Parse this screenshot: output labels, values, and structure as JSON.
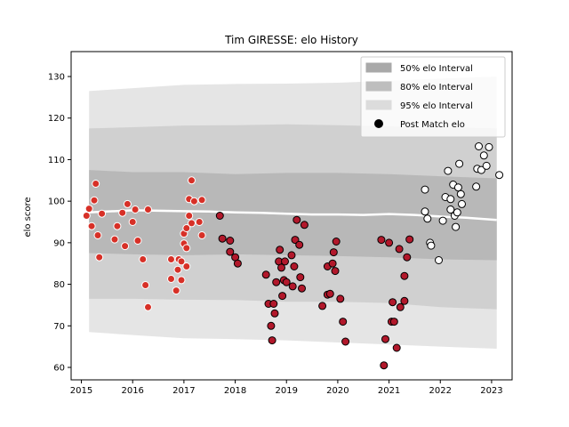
{
  "chart_data": {
    "type": "scatter",
    "title": "Tim GIRESSE: elo History",
    "xlabel": "",
    "ylabel": "elo score",
    "xlim": [
      2014.8,
      2023.4
    ],
    "ylim": [
      57,
      136
    ],
    "x_ticks": [
      2015,
      2016,
      2017,
      2018,
      2019,
      2020,
      2021,
      2022,
      2023
    ],
    "x_tick_labels": [
      "2015",
      "2016",
      "2017",
      "2018",
      "2019",
      "2020",
      "2021",
      "2022",
      "2023"
    ],
    "y_ticks": [
      60,
      70,
      80,
      90,
      100,
      110,
      120,
      130
    ],
    "y_tick_labels": [
      "60",
      "70",
      "80",
      "90",
      "100",
      "110",
      "120",
      "130"
    ],
    "grid": false,
    "legend": {
      "placement": "top-right",
      "entries": [
        {
          "label": "50% elo Interval",
          "color": "#a9a9a9"
        },
        {
          "label": "80% elo Interval",
          "color": "#bebebe"
        },
        {
          "label": "95% elo Interval",
          "color": "#dcdcdc"
        },
        {
          "label": "Post Match elo",
          "color": "#000000"
        }
      ]
    },
    "bands": [
      {
        "name": "95% elo Interval",
        "color": "#e0e0e0",
        "x": [
          2015.15,
          2016.0,
          2017.0,
          2018.0,
          2019.0,
          2020.0,
          2021.0,
          2022.0,
          2023.1
        ],
        "upper": [
          126.5,
          127.2,
          128.0,
          128.2,
          128.3,
          128.5,
          129.0,
          129.5,
          130.0
        ],
        "lower": [
          68.5,
          67.8,
          67.0,
          66.8,
          66.5,
          66.0,
          65.5,
          65.0,
          64.5
        ]
      },
      {
        "name": "80% elo Interval",
        "color": "#cccccc",
        "x": [
          2015.15,
          2016.0,
          2017.0,
          2018.0,
          2019.0,
          2020.0,
          2021.0,
          2022.0,
          2023.1
        ],
        "upper": [
          117.5,
          117.8,
          118.2,
          118.3,
          118.5,
          118.3,
          118.0,
          117.8,
          117.5
        ],
        "lower": [
          76.5,
          76.5,
          76.3,
          76.2,
          75.8,
          75.8,
          75.5,
          74.5,
          74.0
        ]
      },
      {
        "name": "50% elo Interval",
        "color": "#b4b4b4",
        "x": [
          2015.15,
          2016.0,
          2017.0,
          2018.0,
          2019.0,
          2020.0,
          2021.0,
          2022.0,
          2023.1
        ],
        "upper": [
          107.5,
          107.0,
          107.0,
          106.5,
          106.8,
          106.8,
          106.5,
          106.0,
          105.5
        ],
        "lower": [
          87.5,
          87.2,
          87.0,
          87.2,
          87.0,
          86.8,
          86.5,
          86.0,
          85.8
        ]
      }
    ],
    "mean_line": {
      "color": "#ffffff",
      "x": [
        2015.15,
        2015.5,
        2016.0,
        2016.5,
        2017.0,
        2017.5,
        2018.0,
        2018.5,
        2019.0,
        2019.5,
        2020.0,
        2020.5,
        2021.0,
        2021.5,
        2022.0,
        2022.5,
        2023.1
      ],
      "y": [
        97.3,
        97.5,
        97.8,
        97.7,
        97.6,
        97.5,
        97.3,
        97.2,
        97.0,
        96.8,
        96.8,
        96.7,
        96.9,
        96.7,
        96.3,
        96.0,
        95.5
      ]
    },
    "series": [
      {
        "name": "Post Match elo",
        "era": "early",
        "color": "#d73027",
        "edge": "#ffffff",
        "points": [
          [
            2015.1,
            96.5
          ],
          [
            2015.15,
            98.2
          ],
          [
            2015.2,
            94.0
          ],
          [
            2015.25,
            100.2
          ],
          [
            2015.28,
            104.2
          ],
          [
            2015.32,
            91.8
          ],
          [
            2015.35,
            86.5
          ],
          [
            2015.4,
            97.0
          ],
          [
            2015.65,
            90.8
          ],
          [
            2015.7,
            94.0
          ],
          [
            2015.8,
            97.2
          ],
          [
            2015.85,
            89.2
          ],
          [
            2015.9,
            99.3
          ],
          [
            2016.0,
            95.0
          ],
          [
            2016.05,
            98.0
          ],
          [
            2016.1,
            90.5
          ],
          [
            2016.2,
            86.0
          ],
          [
            2016.25,
            79.8
          ],
          [
            2016.3,
            98.0
          ],
          [
            2016.3,
            74.5
          ],
          [
            2016.75,
            86.0
          ],
          [
            2016.75,
            81.3
          ],
          [
            2016.85,
            78.5
          ],
          [
            2016.88,
            83.5
          ],
          [
            2016.9,
            86.0
          ],
          [
            2016.95,
            81.0
          ],
          [
            2016.95,
            85.5
          ],
          [
            2017.0,
            92.2
          ],
          [
            2017.0,
            89.8
          ],
          [
            2017.05,
            88.7
          ],
          [
            2017.05,
            84.3
          ],
          [
            2017.05,
            93.5
          ],
          [
            2017.1,
            96.5
          ],
          [
            2017.1,
            100.5
          ],
          [
            2017.15,
            105.0
          ],
          [
            2017.15,
            94.7
          ],
          [
            2017.2,
            100.0
          ],
          [
            2017.3,
            95.0
          ],
          [
            2017.35,
            100.3
          ],
          [
            2017.35,
            91.8
          ]
        ]
      },
      {
        "name": "Post Match elo",
        "era": "middle",
        "color": "#b2182b",
        "edge": "#000000",
        "points": [
          [
            2017.7,
            96.5
          ],
          [
            2017.75,
            91.0
          ],
          [
            2017.9,
            90.5
          ],
          [
            2017.9,
            87.8
          ],
          [
            2018.0,
            86.5
          ],
          [
            2018.05,
            85.0
          ],
          [
            2018.6,
            82.3
          ],
          [
            2018.65,
            75.3
          ],
          [
            2018.7,
            70.0
          ],
          [
            2018.72,
            66.5
          ],
          [
            2018.75,
            75.3
          ],
          [
            2018.77,
            73.0
          ],
          [
            2018.8,
            80.5
          ],
          [
            2018.85,
            85.5
          ],
          [
            2018.87,
            88.3
          ],
          [
            2018.9,
            84.0
          ],
          [
            2018.92,
            77.2
          ],
          [
            2018.95,
            81.0
          ],
          [
            2018.97,
            85.5
          ],
          [
            2019.0,
            80.5
          ],
          [
            2019.1,
            87.0
          ],
          [
            2019.12,
            79.5
          ],
          [
            2019.15,
            84.3
          ],
          [
            2019.17,
            90.7
          ],
          [
            2019.2,
            95.5
          ],
          [
            2019.25,
            89.5
          ],
          [
            2019.27,
            81.7
          ],
          [
            2019.3,
            79.0
          ],
          [
            2019.35,
            94.3
          ],
          [
            2019.7,
            74.8
          ],
          [
            2019.8,
            77.5
          ],
          [
            2019.8,
            84.3
          ],
          [
            2019.85,
            77.7
          ],
          [
            2019.9,
            85.0
          ],
          [
            2019.92,
            87.7
          ],
          [
            2019.95,
            83.2
          ],
          [
            2019.97,
            90.3
          ],
          [
            2020.05,
            76.5
          ],
          [
            2020.1,
            71.0
          ],
          [
            2020.15,
            66.2
          ],
          [
            2020.85,
            90.7
          ],
          [
            2020.9,
            60.5
          ],
          [
            2020.93,
            66.8
          ],
          [
            2021.0,
            90.0
          ],
          [
            2021.05,
            71.0
          ],
          [
            2021.07,
            75.7
          ],
          [
            2021.1,
            71.0
          ],
          [
            2021.15,
            64.7
          ],
          [
            2021.2,
            88.5
          ],
          [
            2021.22,
            74.5
          ],
          [
            2021.3,
            76.0
          ],
          [
            2021.3,
            82.0
          ],
          [
            2021.35,
            86.5
          ],
          [
            2021.4,
            90.8
          ]
        ]
      },
      {
        "name": "Post Match elo",
        "era": "recent",
        "color": "#ffffff",
        "edge": "#000000",
        "points": [
          [
            2021.7,
            102.8
          ],
          [
            2021.7,
            97.5
          ],
          [
            2021.75,
            95.8
          ],
          [
            2021.8,
            90.0
          ],
          [
            2021.82,
            89.3
          ],
          [
            2021.97,
            85.8
          ],
          [
            2022.05,
            95.3
          ],
          [
            2022.1,
            101.0
          ],
          [
            2022.15,
            107.3
          ],
          [
            2022.2,
            100.5
          ],
          [
            2022.2,
            98.0
          ],
          [
            2022.25,
            104.0
          ],
          [
            2022.28,
            96.5
          ],
          [
            2022.3,
            93.8
          ],
          [
            2022.33,
            97.3
          ],
          [
            2022.35,
            103.3
          ],
          [
            2022.37,
            109.0
          ],
          [
            2022.4,
            101.7
          ],
          [
            2022.42,
            99.3
          ],
          [
            2022.7,
            103.5
          ],
          [
            2022.72,
            107.8
          ],
          [
            2022.75,
            113.2
          ],
          [
            2022.8,
            107.5
          ],
          [
            2022.85,
            111.0
          ],
          [
            2022.9,
            108.5
          ],
          [
            2022.95,
            113.0
          ],
          [
            2023.15,
            106.3
          ]
        ]
      }
    ]
  }
}
